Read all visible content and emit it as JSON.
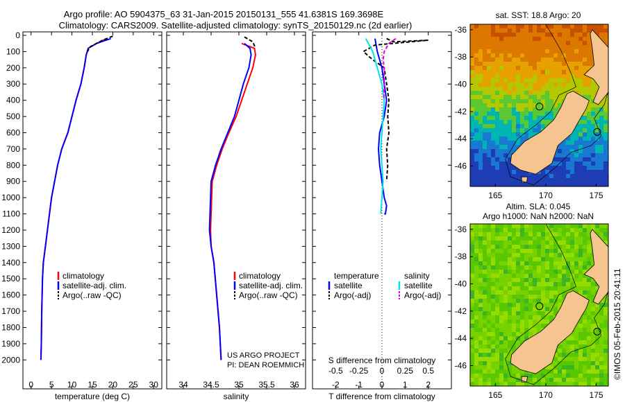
{
  "header": {
    "line1": "Argo profile: AO 5904375_63 31-Jan-2015 20150131_555 41.6381S 169.3698E",
    "line2": "Climatology: CARS2009. Satellite-adjusted climatology: synTS_20150129.nc (2d earlier)"
  },
  "colors": {
    "climatology": "#ff0000",
    "satellite": "#0000ff",
    "argo": "#000000",
    "sal_satellite": "#00e5e5",
    "sal_argo": "#e000e0",
    "land": "#f5c48f"
  },
  "chart_data": [
    {
      "type": "line",
      "xlabel": "temperature (deg C)",
      "xlim": [
        -2,
        32
      ],
      "ylim": [
        0,
        2050
      ],
      "xticks": [
        0,
        5,
        10,
        15,
        20,
        25,
        30
      ],
      "yticks": [
        0,
        100,
        200,
        300,
        400,
        500,
        600,
        700,
        800,
        900,
        1000,
        1100,
        1200,
        1300,
        1400,
        1500,
        1600,
        1700,
        1800,
        1900,
        2000
      ],
      "legend": [
        "climatology",
        "satellite-adj. clim.",
        "Argo(..raw -QC)"
      ],
      "series": [
        {
          "name": "climatology",
          "color": "red",
          "x": [
            18.5,
            16,
            14,
            13.5,
            13,
            12.2,
            11,
            10,
            9,
            7.5,
            6.5,
            5,
            4,
            3.5,
            3,
            2.8,
            2.6,
            2.5,
            2.4
          ],
          "y": [
            20,
            50,
            80,
            120,
            200,
            300,
            400,
            500,
            600,
            700,
            800,
            1000,
            1200,
            1300,
            1400,
            1500,
            1700,
            1900,
            2000
          ]
        },
        {
          "name": "satellite-adj. clim.",
          "color": "blue",
          "x": [
            19.5,
            16,
            14,
            13.5,
            13,
            12.2,
            11,
            10,
            9,
            7.5,
            6.5,
            5,
            4,
            3.5,
            3,
            2.8,
            2.6,
            2.5,
            2.4
          ],
          "y": [
            20,
            50,
            80,
            120,
            200,
            300,
            400,
            500,
            600,
            700,
            800,
            1000,
            1200,
            1300,
            1400,
            1500,
            1700,
            1900,
            2000
          ]
        },
        {
          "name": "Argo(..raw -QC)",
          "color": "black",
          "x": [
            20,
            17.5,
            14.5,
            13.8
          ],
          "y": [
            5,
            30,
            70,
            100
          ]
        }
      ]
    },
    {
      "type": "line",
      "xlabel": "salinity",
      "xlim": [
        33.7,
        36.2
      ],
      "ylim": [
        0,
        2050
      ],
      "xticks": [
        34,
        34.5,
        35,
        35.5,
        36
      ],
      "legend": [
        "climatology",
        "satellite-adj. clim.",
        "Argo(..raw -QC)"
      ],
      "annotation": [
        "US ARGO PROJECT",
        "PI: DEAN ROEMMICH"
      ],
      "series": [
        {
          "name": "climatology",
          "color": "red",
          "x": [
            35.05,
            35.28,
            35.3,
            35.25,
            35.15,
            35.05,
            34.95,
            34.82,
            34.7,
            34.6,
            34.52,
            34.5,
            34.49,
            34.5,
            34.55,
            34.6,
            34.65,
            34.68
          ],
          "y": [
            50,
            80,
            120,
            200,
            300,
            400,
            500,
            600,
            700,
            800,
            900,
            1100,
            1200,
            1300,
            1400,
            1600,
            1800,
            2000
          ]
        },
        {
          "name": "satellite-adj. clim.",
          "color": "blue",
          "x": [
            35.1,
            35.2,
            35.22,
            35.18,
            35.08,
            35.0,
            34.92,
            34.8,
            34.68,
            34.58,
            34.5,
            34.48,
            34.47,
            34.5,
            34.55,
            34.6,
            34.65,
            34.68
          ],
          "y": [
            50,
            80,
            120,
            200,
            300,
            400,
            500,
            600,
            700,
            800,
            900,
            1100,
            1200,
            1300,
            1400,
            1600,
            1800,
            2000
          ]
        },
        {
          "name": "Argo(..raw -QC)",
          "color": "black",
          "x": [
            35.1,
            35.25,
            35.3
          ],
          "y": [
            10,
            40,
            80
          ]
        }
      ]
    },
    {
      "type": "line",
      "xlabel": "T difference from climatology",
      "xlabel2": "S difference from climatology",
      "xlim": [
        -3,
        3
      ],
      "ylim": [
        0,
        2050
      ],
      "xticks": [
        -2,
        -1,
        0,
        1,
        2
      ],
      "xticks2": [
        "-0.5",
        "-0.25",
        "0",
        "0.25",
        "0.5"
      ],
      "legend_groups": [
        {
          "title": "temperature",
          "items": [
            "satellite",
            "Argo(-adj)"
          ]
        },
        {
          "title": "salinity",
          "items": [
            "satellite",
            "Argo(-adj)"
          ]
        }
      ],
      "series": [
        {
          "name": "temperature satellite",
          "color": "blue",
          "x": [
            -0.3,
            -0.2,
            0,
            0.1,
            0.2,
            0.1,
            0,
            -0.1,
            -0.15,
            -0.1,
            0,
            0.1,
            0.2,
            0.15,
            0.1,
            0.15
          ],
          "y": [
            20,
            100,
            200,
            300,
            400,
            500,
            550,
            600,
            700,
            800,
            900,
            1000,
            1050,
            1100,
            1100,
            1100
          ]
        },
        {
          "name": "temperature Argo(-adj)",
          "color": "black",
          "x": [
            0.2,
            0.5,
            2.0,
            -0.3,
            -0.8,
            -0.4,
            0.1,
            0.2,
            0.3,
            0.25,
            0.3,
            0.2,
            0.25,
            0.2
          ],
          "y": [
            20,
            40,
            30,
            60,
            100,
            150,
            200,
            300,
            400,
            500,
            600,
            700,
            800,
            900
          ]
        },
        {
          "name": "salinity satellite",
          "color": "cyan",
          "x": [
            -0.7,
            -0.4,
            -0.2,
            0,
            0.1,
            0.05,
            0,
            -0.05,
            0,
            0.05,
            0,
            -0.05
          ],
          "y": [
            20,
            100,
            200,
            300,
            400,
            500,
            600,
            700,
            800,
            900,
            1000,
            1100
          ]
        },
        {
          "name": "salinity Argo(-adj)",
          "color": "magenta",
          "x": [
            0.6,
            0.3,
            0.1,
            0.05,
            0.1,
            0.1,
            0.08
          ],
          "y": [
            20,
            50,
            100,
            150,
            200,
            300,
            400
          ]
        }
      ]
    },
    {
      "type": "heatmap",
      "title": "sat. SST: 18.8 Argo: 20",
      "xlim": [
        162.5,
        176.2
      ],
      "ylim": [
        -47.5,
        -35.6
      ],
      "xticks": [
        165,
        170,
        175
      ],
      "yticks": [
        -36,
        -38,
        -40,
        -42,
        -44,
        -46
      ]
    },
    {
      "type": "heatmap",
      "title": "Altim. SLA: 0.045",
      "title2": "Argo h1000: NaN h2000: NaN",
      "xlim": [
        162.5,
        176.2
      ],
      "ylim": [
        -47.5,
        -35.6
      ],
      "xticks": [
        165,
        170,
        175
      ],
      "yticks": [
        -36,
        -38,
        -40,
        -42,
        -44,
        -46
      ]
    }
  ],
  "footer": {
    "stamp": "©IMOS 05-Feb-2015 20:41:11"
  }
}
